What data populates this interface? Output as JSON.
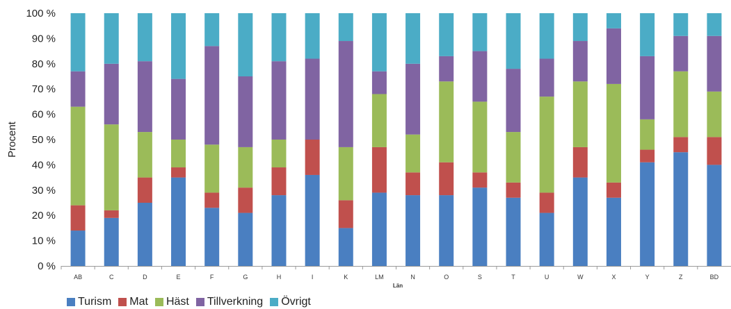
{
  "chart_data": {
    "type": "bar",
    "stacked": true,
    "percent": true,
    "title": "",
    "xlabel": "Län",
    "ylabel": "Procent",
    "ylim": [
      0,
      100
    ],
    "y_ticks": [
      "0 %",
      "10 %",
      "20 %",
      "30 %",
      "40 %",
      "50 %",
      "60 %",
      "70 %",
      "80 %",
      "90 %",
      "100 %"
    ],
    "grid": false,
    "legend_position": "bottom-left",
    "categories": [
      "AB",
      "C",
      "D",
      "E",
      "F",
      "G",
      "H",
      "I",
      "K",
      "LM",
      "N",
      "O",
      "S",
      "T",
      "U",
      "W",
      "X",
      "Y",
      "Z",
      "BD"
    ],
    "series": [
      {
        "name": "Turism",
        "color": "#4a7fc1",
        "values": [
          14,
          19,
          25,
          35,
          23,
          21,
          28,
          36,
          15,
          29,
          28,
          28,
          31,
          27,
          21,
          35,
          27,
          41,
          45,
          40
        ]
      },
      {
        "name": "Mat",
        "color": "#c0504d",
        "values": [
          10,
          3,
          10,
          4,
          6,
          10,
          11,
          14,
          11,
          18,
          9,
          13,
          6,
          6,
          8,
          12,
          6,
          5,
          6,
          11
        ]
      },
      {
        "name": "Häst",
        "color": "#9bbb59",
        "values": [
          39,
          34,
          18,
          11,
          19,
          16,
          11,
          0,
          21,
          21,
          15,
          32,
          28,
          20,
          38,
          26,
          39,
          12,
          26,
          18
        ]
      },
      {
        "name": "Tillverkning",
        "color": "#8064a2",
        "values": [
          14,
          24,
          28,
          24,
          39,
          28,
          31,
          32,
          42,
          9,
          28,
          10,
          20,
          25,
          15,
          16,
          22,
          25,
          14,
          22
        ]
      },
      {
        "name": "Övrigt",
        "color": "#4bacc6",
        "values": [
          23,
          20,
          19,
          26,
          13,
          25,
          19,
          18,
          11,
          23,
          20,
          17,
          15,
          22,
          18,
          11,
          6,
          17,
          9,
          9
        ]
      }
    ]
  }
}
